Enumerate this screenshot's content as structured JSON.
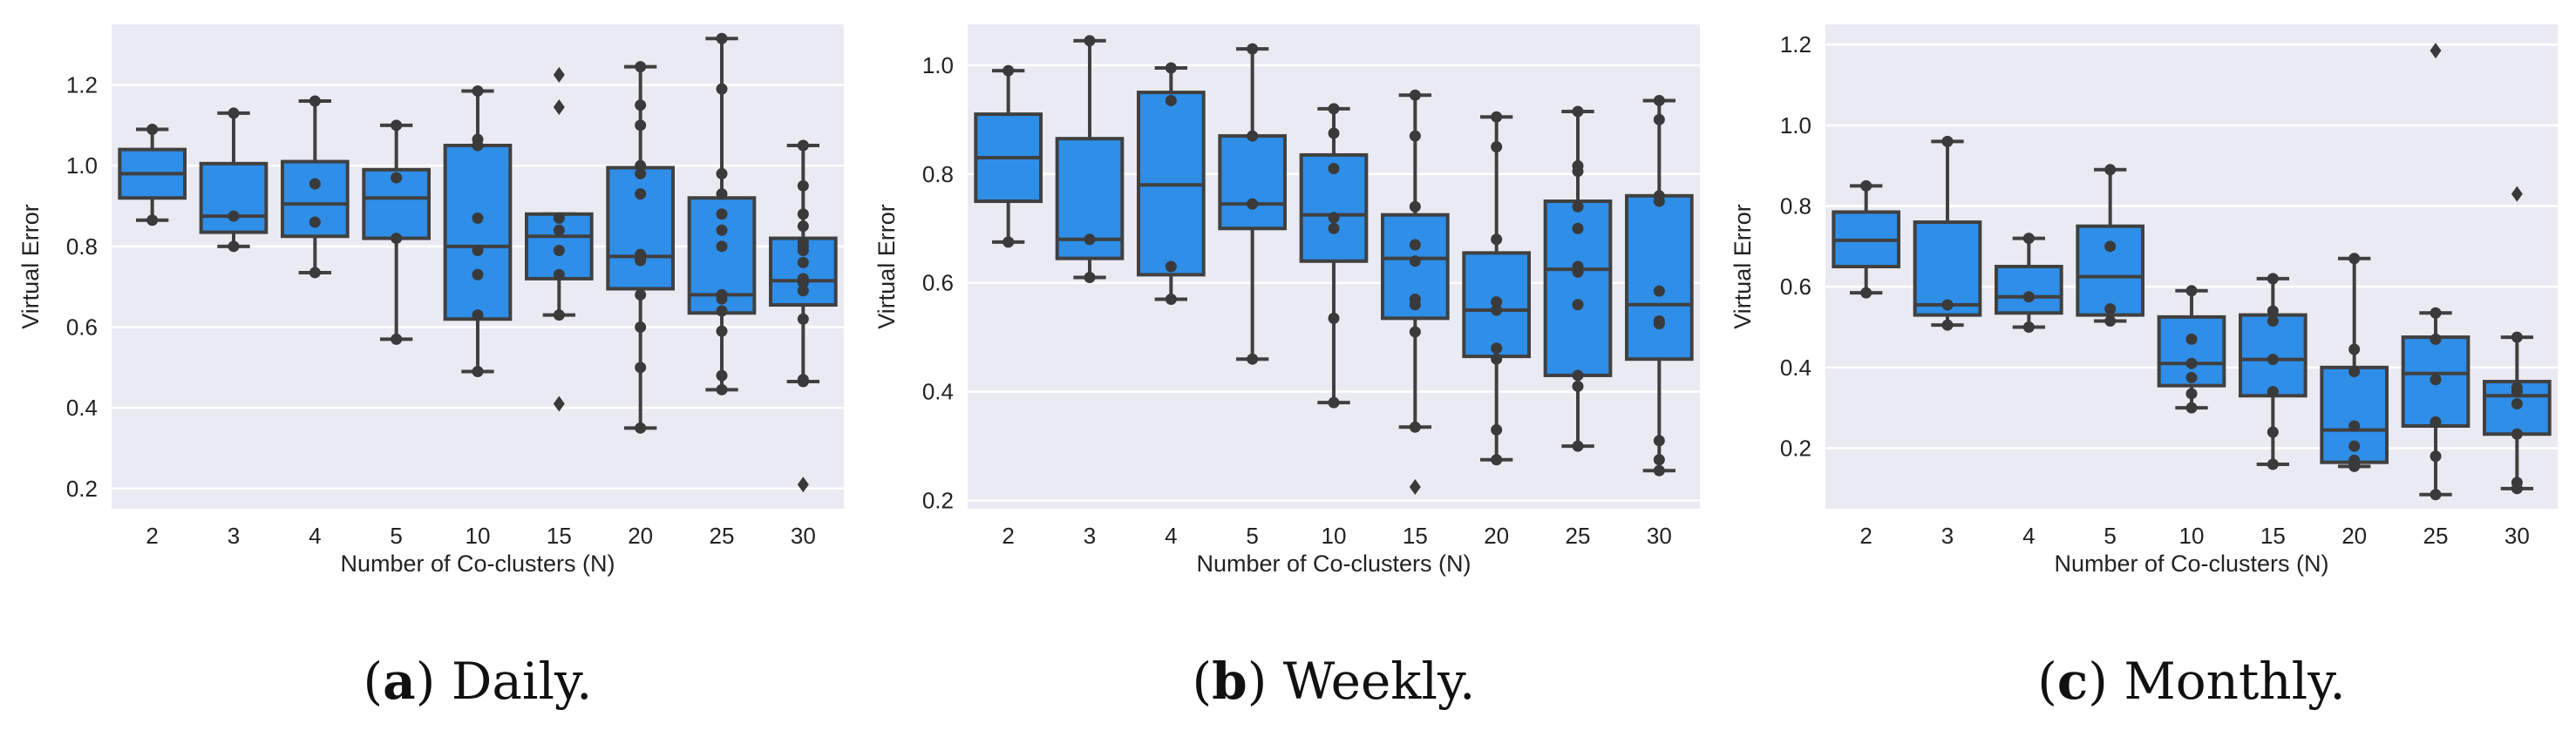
{
  "chart_data": [
    {
      "type": "box",
      "panel": "a",
      "caption": "Daily.",
      "caption_letter": "a",
      "xlabel": "Number of Co-clusters (N)",
      "ylabel": "Virtual Error",
      "categories": [
        "2",
        "3",
        "4",
        "5",
        "10",
        "15",
        "20",
        "25",
        "30"
      ],
      "ylim": [
        0.15,
        1.35
      ],
      "yticks": [
        0.2,
        0.4,
        0.6,
        0.8,
        1.0,
        1.2
      ],
      "ytick_labels": [
        "0.2",
        "0.4",
        "0.6",
        "0.8",
        "1.0",
        "1.2"
      ],
      "boxes": [
        {
          "q1": 0.92,
          "median": 0.98,
          "q3": 1.04,
          "whislo": 0.865,
          "whishi": 1.09,
          "fliers": []
        },
        {
          "q1": 0.835,
          "median": 0.875,
          "q3": 1.005,
          "whislo": 0.8,
          "whishi": 1.13,
          "fliers": []
        },
        {
          "q1": 0.825,
          "median": 0.905,
          "q3": 1.01,
          "whislo": 0.735,
          "whishi": 1.16,
          "fliers": []
        },
        {
          "q1": 0.82,
          "median": 0.92,
          "q3": 0.99,
          "whislo": 0.57,
          "whishi": 1.1,
          "fliers": []
        },
        {
          "q1": 0.62,
          "median": 0.8,
          "q3": 1.05,
          "whislo": 0.49,
          "whishi": 1.185,
          "fliers": []
        },
        {
          "q1": 0.72,
          "median": 0.825,
          "q3": 0.88,
          "whislo": 0.63,
          "whishi": 0.88,
          "fliers": [
            1.145,
            1.225,
            0.41
          ]
        },
        {
          "q1": 0.695,
          "median": 0.775,
          "q3": 0.995,
          "whislo": 0.35,
          "whishi": 1.245,
          "fliers": []
        },
        {
          "q1": 0.635,
          "median": 0.68,
          "q3": 0.92,
          "whislo": 0.445,
          "whishi": 1.315,
          "fliers": []
        },
        {
          "q1": 0.655,
          "median": 0.715,
          "q3": 0.82,
          "whislo": 0.465,
          "whishi": 1.05,
          "fliers": [
            0.21
          ]
        }
      ],
      "points": [
        [
          0.865,
          1.09
        ],
        [
          0.8,
          0.875,
          1.13
        ],
        [
          0.735,
          0.86,
          0.955,
          1.16
        ],
        [
          0.57,
          0.82,
          0.97,
          1.1
        ],
        [
          0.49,
          0.63,
          0.73,
          0.79,
          0.87,
          1.05,
          1.065,
          1.185
        ],
        [
          0.41,
          0.63,
          0.73,
          0.79,
          0.84,
          0.87,
          1.145,
          1.225
        ],
        [
          0.35,
          0.5,
          0.6,
          0.68,
          0.765,
          0.77,
          0.78,
          0.93,
          0.98,
          1.0,
          1.1,
          1.15,
          1.245
        ],
        [
          0.445,
          0.48,
          0.59,
          0.64,
          0.67,
          0.68,
          0.8,
          0.84,
          0.88,
          0.93,
          0.98,
          1.19,
          1.315
        ],
        [
          0.21,
          0.465,
          0.47,
          0.62,
          0.69,
          0.71,
          0.72,
          0.76,
          0.79,
          0.8,
          0.81,
          0.85,
          0.88,
          0.95,
          1.05
        ]
      ]
    },
    {
      "type": "box",
      "panel": "b",
      "caption": "Weekly.",
      "caption_letter": "b",
      "xlabel": "Number of Co-clusters (N)",
      "ylabel": "Virtual Error",
      "categories": [
        "2",
        "3",
        "4",
        "5",
        "10",
        "15",
        "20",
        "25",
        "30"
      ],
      "ylim": [
        0.185,
        1.075
      ],
      "yticks": [
        0.2,
        0.4,
        0.6,
        0.8,
        1.0
      ],
      "ytick_labels": [
        "0.2",
        "0.4",
        "0.6",
        "0.8",
        "1.0"
      ],
      "boxes": [
        {
          "q1": 0.75,
          "median": 0.83,
          "q3": 0.91,
          "whislo": 0.675,
          "whishi": 0.99,
          "fliers": []
        },
        {
          "q1": 0.645,
          "median": 0.68,
          "q3": 0.865,
          "whislo": 0.61,
          "whishi": 1.045,
          "fliers": []
        },
        {
          "q1": 0.615,
          "median": 0.78,
          "q3": 0.95,
          "whislo": 0.57,
          "whishi": 0.995,
          "fliers": []
        },
        {
          "q1": 0.7,
          "median": 0.745,
          "q3": 0.87,
          "whislo": 0.46,
          "whishi": 1.03,
          "fliers": []
        },
        {
          "q1": 0.64,
          "median": 0.725,
          "q3": 0.835,
          "whislo": 0.38,
          "whishi": 0.92,
          "fliers": []
        },
        {
          "q1": 0.535,
          "median": 0.645,
          "q3": 0.725,
          "whislo": 0.335,
          "whishi": 0.945,
          "fliers": [
            0.225
          ]
        },
        {
          "q1": 0.465,
          "median": 0.55,
          "q3": 0.655,
          "whislo": 0.275,
          "whishi": 0.905,
          "fliers": []
        },
        {
          "q1": 0.43,
          "median": 0.625,
          "q3": 0.75,
          "whislo": 0.3,
          "whishi": 0.915,
          "fliers": []
        },
        {
          "q1": 0.46,
          "median": 0.56,
          "q3": 0.76,
          "whislo": 0.255,
          "whishi": 0.935,
          "fliers": []
        }
      ],
      "points": [
        [
          0.675,
          0.99
        ],
        [
          0.61,
          0.68,
          1.045
        ],
        [
          0.57,
          0.63,
          0.935,
          0.995
        ],
        [
          0.46,
          0.745,
          0.87,
          1.03
        ],
        [
          0.38,
          0.535,
          0.7,
          0.72,
          0.81,
          0.875,
          0.92
        ],
        [
          0.225,
          0.335,
          0.51,
          0.56,
          0.57,
          0.64,
          0.67,
          0.74,
          0.87,
          0.945
        ],
        [
          0.275,
          0.33,
          0.46,
          0.48,
          0.55,
          0.565,
          0.68,
          0.85,
          0.905
        ],
        [
          0.3,
          0.41,
          0.43,
          0.56,
          0.62,
          0.63,
          0.7,
          0.74,
          0.805,
          0.815,
          0.915
        ],
        [
          0.255,
          0.275,
          0.31,
          0.525,
          0.53,
          0.585,
          0.75,
          0.76,
          0.9,
          0.935
        ]
      ]
    },
    {
      "type": "box",
      "panel": "c",
      "caption": "Monthly.",
      "caption_letter": "c",
      "xlabel": "Number of Co-clusters (N)",
      "ylabel": "Virtual Error",
      "categories": [
        "2",
        "3",
        "4",
        "5",
        "10",
        "15",
        "20",
        "25",
        "30"
      ],
      "ylim": [
        0.05,
        1.25
      ],
      "yticks": [
        0.2,
        0.4,
        0.6,
        0.8,
        1.0,
        1.2
      ],
      "ytick_labels": [
        "0.2",
        "0.4",
        "0.6",
        "0.8",
        "1.0",
        "1.2"
      ],
      "boxes": [
        {
          "q1": 0.65,
          "median": 0.715,
          "q3": 0.785,
          "whislo": 0.585,
          "whishi": 0.85,
          "fliers": []
        },
        {
          "q1": 0.53,
          "median": 0.555,
          "q3": 0.76,
          "whislo": 0.505,
          "whishi": 0.96,
          "fliers": []
        },
        {
          "q1": 0.535,
          "median": 0.575,
          "q3": 0.65,
          "whislo": 0.5,
          "whishi": 0.72,
          "fliers": []
        },
        {
          "q1": 0.53,
          "median": 0.625,
          "q3": 0.75,
          "whislo": 0.515,
          "whishi": 0.89,
          "fliers": []
        },
        {
          "q1": 0.355,
          "median": 0.41,
          "q3": 0.525,
          "whislo": 0.3,
          "whishi": 0.59,
          "fliers": []
        },
        {
          "q1": 0.33,
          "median": 0.42,
          "q3": 0.53,
          "whislo": 0.16,
          "whishi": 0.62,
          "fliers": []
        },
        {
          "q1": 0.165,
          "median": 0.245,
          "q3": 0.4,
          "whislo": 0.155,
          "whishi": 0.67,
          "fliers": []
        },
        {
          "q1": 0.255,
          "median": 0.385,
          "q3": 0.475,
          "whislo": 0.085,
          "whishi": 0.535,
          "fliers": [
            1.185
          ]
        },
        {
          "q1": 0.235,
          "median": 0.33,
          "q3": 0.365,
          "whislo": 0.1,
          "whishi": 0.475,
          "fliers": [
            0.83
          ]
        }
      ],
      "points": [
        [
          0.585,
          0.85
        ],
        [
          0.505,
          0.555,
          0.96
        ],
        [
          0.5,
          0.575,
          0.72
        ],
        [
          0.515,
          0.545,
          0.7,
          0.89
        ],
        [
          0.3,
          0.335,
          0.375,
          0.41,
          0.47,
          0.59
        ],
        [
          0.16,
          0.24,
          0.34,
          0.42,
          0.515,
          0.54,
          0.62
        ],
        [
          0.155,
          0.16,
          0.17,
          0.205,
          0.255,
          0.39,
          0.445,
          0.67
        ],
        [
          0.085,
          0.18,
          0.265,
          0.37,
          0.47,
          0.535,
          1.185
        ],
        [
          0.1,
          0.115,
          0.235,
          0.31,
          0.34,
          0.35,
          0.475,
          0.83
        ]
      ]
    }
  ],
  "colors": {
    "background": "#eaeaf2",
    "grid": "#ffffff",
    "box_fill": "#2e8ee8",
    "line": "#404040",
    "point": "#3a3a3a"
  }
}
